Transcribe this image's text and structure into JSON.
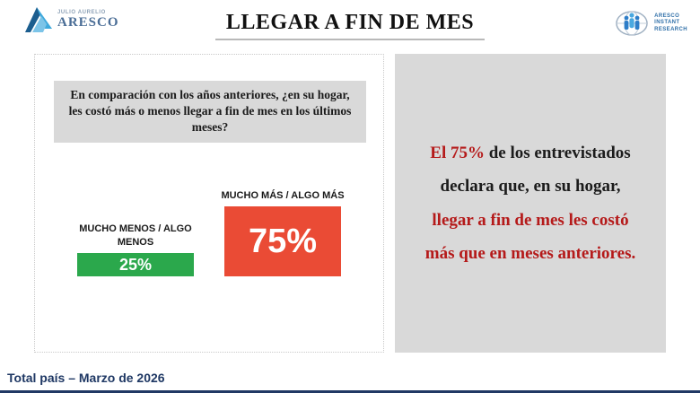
{
  "header": {
    "title": "LLEGAR A FIN DE MES",
    "logo_left": {
      "tagline": "JULIO AURELIO",
      "brand": "ARESCO"
    },
    "logo_right": {
      "line1": "ARESCO",
      "line2": "INSTANT",
      "line3": "RESEARCH"
    }
  },
  "question": "En comparación con los años anteriores, ¿en su hogar, les costó más o menos llegar a fin de mes en los últimos meses?",
  "chart_data": {
    "type": "bar",
    "categories": [
      "MUCHO MENOS / ALGO MENOS",
      "MUCHO MÁS / ALGO MÁS"
    ],
    "values": [
      25,
      75
    ],
    "value_labels": [
      "25%",
      "75%"
    ],
    "colors": [
      "#2ba84c",
      "#ea4b35"
    ],
    "title": "",
    "xlabel": "",
    "ylabel": "",
    "ylim": [
      0,
      100
    ],
    "grid": false,
    "legend": "none",
    "value_label_position": "inside",
    "category_label_position": "above-bar"
  },
  "callout": {
    "line1_red": "El 75%",
    "line1_black": " de los entrevistados",
    "line2": "declara que, en su hogar,",
    "line3": "llegar a fin de mes les costó",
    "line4": "más que en meses anteriores."
  },
  "footer": {
    "text": "Total país – Marzo de 2026"
  },
  "colors": {
    "bar_positive_less": "#2ba84c",
    "bar_negative_more": "#ea4b35",
    "callout_red": "#b51a1a",
    "panel_gray": "#d9d9d9",
    "footer_navy": "#1f3864",
    "title_underline": "#b9b9b9"
  }
}
